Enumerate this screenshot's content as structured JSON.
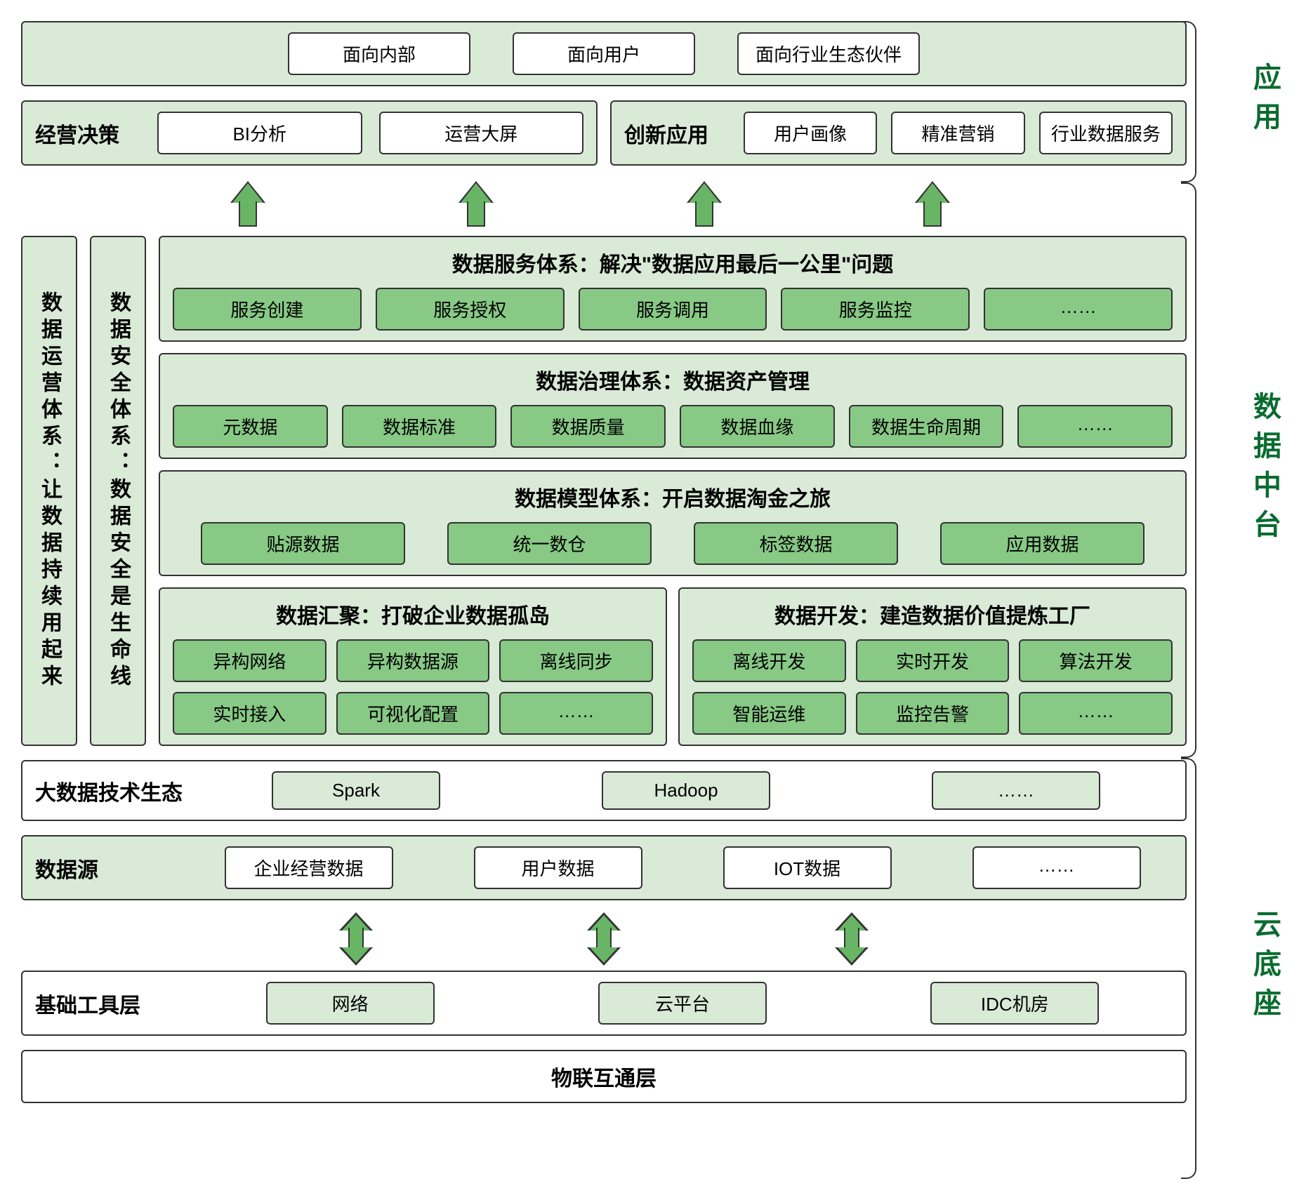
{
  "colors": {
    "panel_light": "#d9ead7",
    "box_green": "#87c985",
    "arrow_fill": "#69b566",
    "border": "#333333",
    "label_text": "#0a6b2f",
    "background": "#ffffff"
  },
  "section_labels": {
    "application": "应用",
    "data_mid": "数据中台",
    "cloud_base": "云底座"
  },
  "app": {
    "audience": {
      "internal": "面向内部",
      "user": "面向用户",
      "partner": "面向行业生态伙伴"
    },
    "biz_decision": {
      "title": "经营决策",
      "bi": "BI分析",
      "ops_screen": "运营大屏"
    },
    "innovation": {
      "title": "创新应用",
      "user_profile": "用户画像",
      "precision_marketing": "精准营销",
      "industry_data_service": "行业数据服务"
    }
  },
  "pillars": {
    "ops": "数据运营体系：让数据持续用起来",
    "security": "数据安全体系：数据安全是生命线"
  },
  "mid": {
    "service": {
      "title": "数据服务体系：解决\"数据应用最后一公里\"问题",
      "create": "服务创建",
      "auth": "服务授权",
      "invoke": "服务调用",
      "monitor": "服务监控",
      "more": "……"
    },
    "govern": {
      "title": "数据治理体系：数据资产管理",
      "meta": "元数据",
      "standard": "数据标准",
      "quality": "数据质量",
      "lineage": "数据血缘",
      "lifecycle": "数据生命周期",
      "more": "……"
    },
    "model": {
      "title": "数据模型体系：开启数据淘金之旅",
      "source": "贴源数据",
      "dw": "统一数仓",
      "tag": "标签数据",
      "app": "应用数据"
    },
    "ingest": {
      "title": "数据汇聚：打破企业数据孤岛",
      "hetero_net": "异构网络",
      "hetero_src": "异构数据源",
      "offline_sync": "离线同步",
      "realtime": "实时接入",
      "visual_config": "可视化配置",
      "more": "……"
    },
    "dev": {
      "title": "数据开发：建造数据价值提炼工厂",
      "offline": "离线开发",
      "realtime": "实时开发",
      "algo": "算法开发",
      "aiops": "智能运维",
      "alert": "监控告警",
      "more": "……"
    }
  },
  "cloud": {
    "bigdata": {
      "title": "大数据技术生态",
      "spark": "Spark",
      "hadoop": "Hadoop",
      "more": "……"
    },
    "datasource": {
      "title": "数据源",
      "biz": "企业经营数据",
      "user": "用户数据",
      "iot": "IOT数据",
      "more": "……"
    },
    "infra": {
      "title": "基础工具层",
      "network": "网络",
      "cloud_platform": "云平台",
      "idc": "IDC机房"
    },
    "interconnect": "物联互通层"
  }
}
